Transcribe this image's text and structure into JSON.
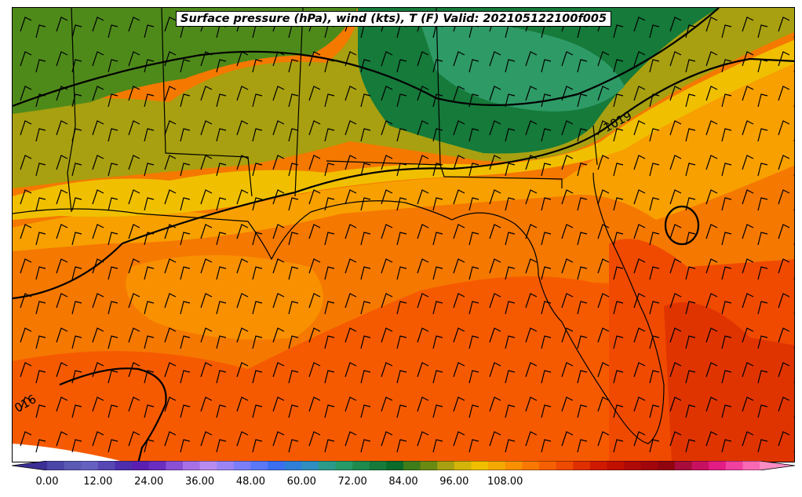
{
  "title": "Surface pressure (hPa), wind (kts), T (F) Valid: 202105122100f005",
  "isobars": [
    {
      "label": "1019"
    },
    {
      "label": "016"
    }
  ],
  "colorbar": {
    "ticks": [
      "0.00",
      "12.00",
      "24.00",
      "36.00",
      "48.00",
      "60.00",
      "72.00",
      "84.00",
      "96.00",
      "108.00"
    ],
    "colors": [
      "#3b2f96",
      "#4b45a8",
      "#5a5ab4",
      "#6560c0",
      "#5747b4",
      "#4c2eac",
      "#5a1fb0",
      "#6b2cc0",
      "#8b4fd6",
      "#a870e6",
      "#b98cf0",
      "#9c84f4",
      "#7b7ef8",
      "#5a78f8",
      "#3c6ff0",
      "#2f7fd8",
      "#2e8ebf",
      "#2a9a8a",
      "#279a6a",
      "#1f8a4e",
      "#157a3a",
      "#0b6b2b",
      "#3f7d1a",
      "#6a8a12",
      "#a8a010",
      "#d2b40a",
      "#f0c000",
      "#f5a800",
      "#f89000",
      "#f87800",
      "#f66000",
      "#ee4a00",
      "#e03000",
      "#d01a00",
      "#c01000",
      "#b00a08",
      "#a0060c",
      "#900410",
      "#a80c3a",
      "#c81060",
      "#e21c84",
      "#f040a0",
      "#f868b4",
      "#fb8cc4"
    ]
  }
}
